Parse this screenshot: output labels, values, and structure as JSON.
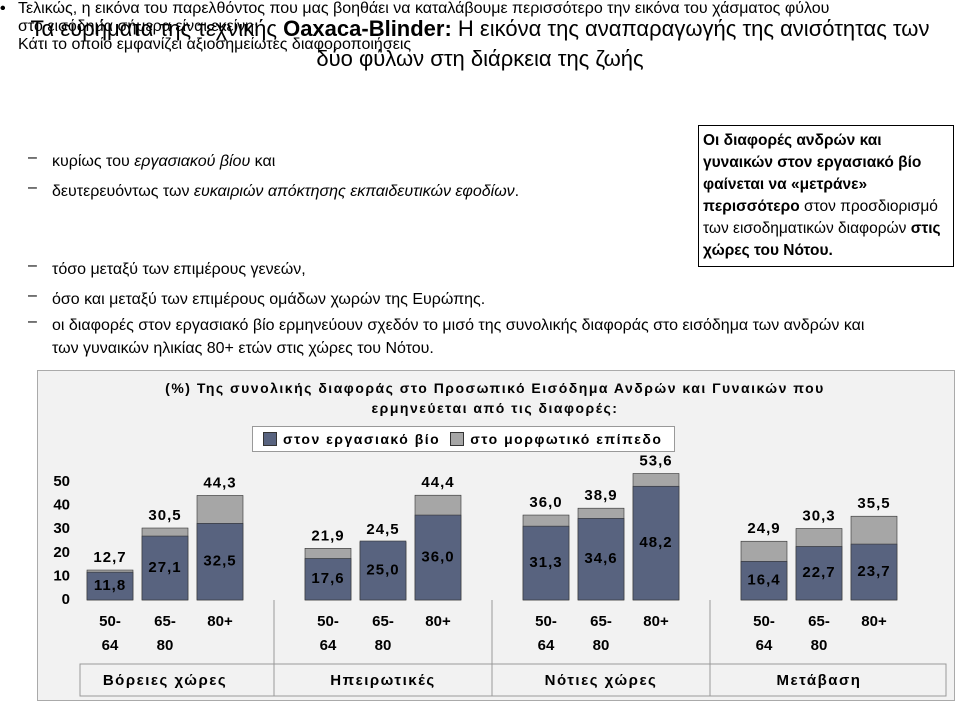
{
  "slide": {
    "title": [
      {
        "text": "Τα ευρήματα της τεχνικής "
      },
      {
        "text": "Oaxaca-Blinder:",
        "style": "bold"
      },
      {
        "text": " Η εικόνα της αναπαραγωγής της ανισότητας των δύο φύλων στη διάρκεια της ζωής"
      }
    ],
    "bullets": [
      {
        "text": "Τελικώς, η εικόνα του παρελθόντος που μας βοηθάει να καταλάβουμε περισσότερο την εικόνα του χάσματος φύλου στο εισόδημα σήμερα είναι εκείνη:",
        "subs": [
          [
            {
              "text": "κυρίως του "
            },
            {
              "text": "εργασιακού βίου",
              "style": "italic"
            },
            {
              "text": " και"
            }
          ],
          [
            {
              "text": "δευτερευόντως των "
            },
            {
              "text": "ευκαιριών απόκτησης εκπαιδευτικών εφοδίων",
              "style": "italic"
            },
            {
              "text": "."
            }
          ]
        ]
      },
      {
        "text": "Κάτι το οποίο εμφανίζει αξιοσημείωτες διαφοροποιήσεις",
        "subs": [
          [
            {
              "text": "τόσο μεταξύ των επιμέρους γενεών,"
            }
          ],
          [
            {
              "text": "όσο και μεταξύ των επιμέρους ομάδων χωρών της Ευρώπης."
            }
          ],
          [
            {
              "text": "οι διαφορές στον εργασιακό βίο ερμηνεύουν σχεδόν το μισό της συνολικής διαφοράς στο εισόδημα των ανδρών και των γυναικών ηλικίας 80+ ετών στις χώρες του Νότου."
            }
          ]
        ]
      }
    ],
    "callout": [
      {
        "text": "Οι διαφορές ανδρών και γυναικών στον εργασιακό βίο φαίνεται να «μετράνε» περισσότερο",
        "style": "bold"
      },
      {
        "text": " στον προσδιορισμό των εισοδηματικών διαφορών "
      },
      {
        "text": "στις χώρες του Νότου.",
        "style": "bold"
      }
    ]
  },
  "chart_data": {
    "type": "bar",
    "title": "(%) Της συνολικής διαφοράς στο Προσωπικό Εισόδημα Ανδρών και Γυναικών που ερμηνεύεται από τις διαφορές:",
    "categories": [
      "50-\n64",
      "65-\n80",
      "80+",
      "50-\n64",
      "65-\n80",
      "80+",
      "50-\n64",
      "65-\n80",
      "80+",
      "50-\n64",
      "65-\n80",
      "80+"
    ],
    "groups": [
      "Βόρειες χώρες",
      "Ηπειρωτικές",
      "Νότιες χώρες",
      "Μετάβαση"
    ],
    "series": [
      {
        "name": "στον εργασιακό βίο",
        "color": "#58637f",
        "values": [
          11.8,
          27.1,
          32.5,
          17.6,
          25.0,
          36.0,
          31.3,
          34.6,
          48.2,
          16.4,
          22.7,
          23.7
        ],
        "value_labels": [
          "11,8",
          "27,1",
          "32,5",
          "17,6",
          "25,0",
          "36,0",
          "31,3",
          "34,6",
          "48,2",
          "16,4",
          "22,7",
          "23,7"
        ]
      },
      {
        "name": "στο μορφωτικό επίπεδο",
        "color": "#a6a6a6",
        "values": [
          12.7,
          30.5,
          44.3,
          21.9,
          24.5,
          44.4,
          36.0,
          38.9,
          53.6,
          24.9,
          30.3,
          35.5
        ],
        "value_labels": [
          "12,7",
          "30,5",
          "44,3",
          "21,9",
          "24,5",
          "44,4",
          "36,0",
          "38,9",
          "53,6",
          "24,9",
          "30,3",
          "35,5"
        ]
      }
    ],
    "ylim": [
      0,
      50
    ],
    "yticks": [
      0,
      10,
      20,
      30,
      40,
      50
    ]
  }
}
